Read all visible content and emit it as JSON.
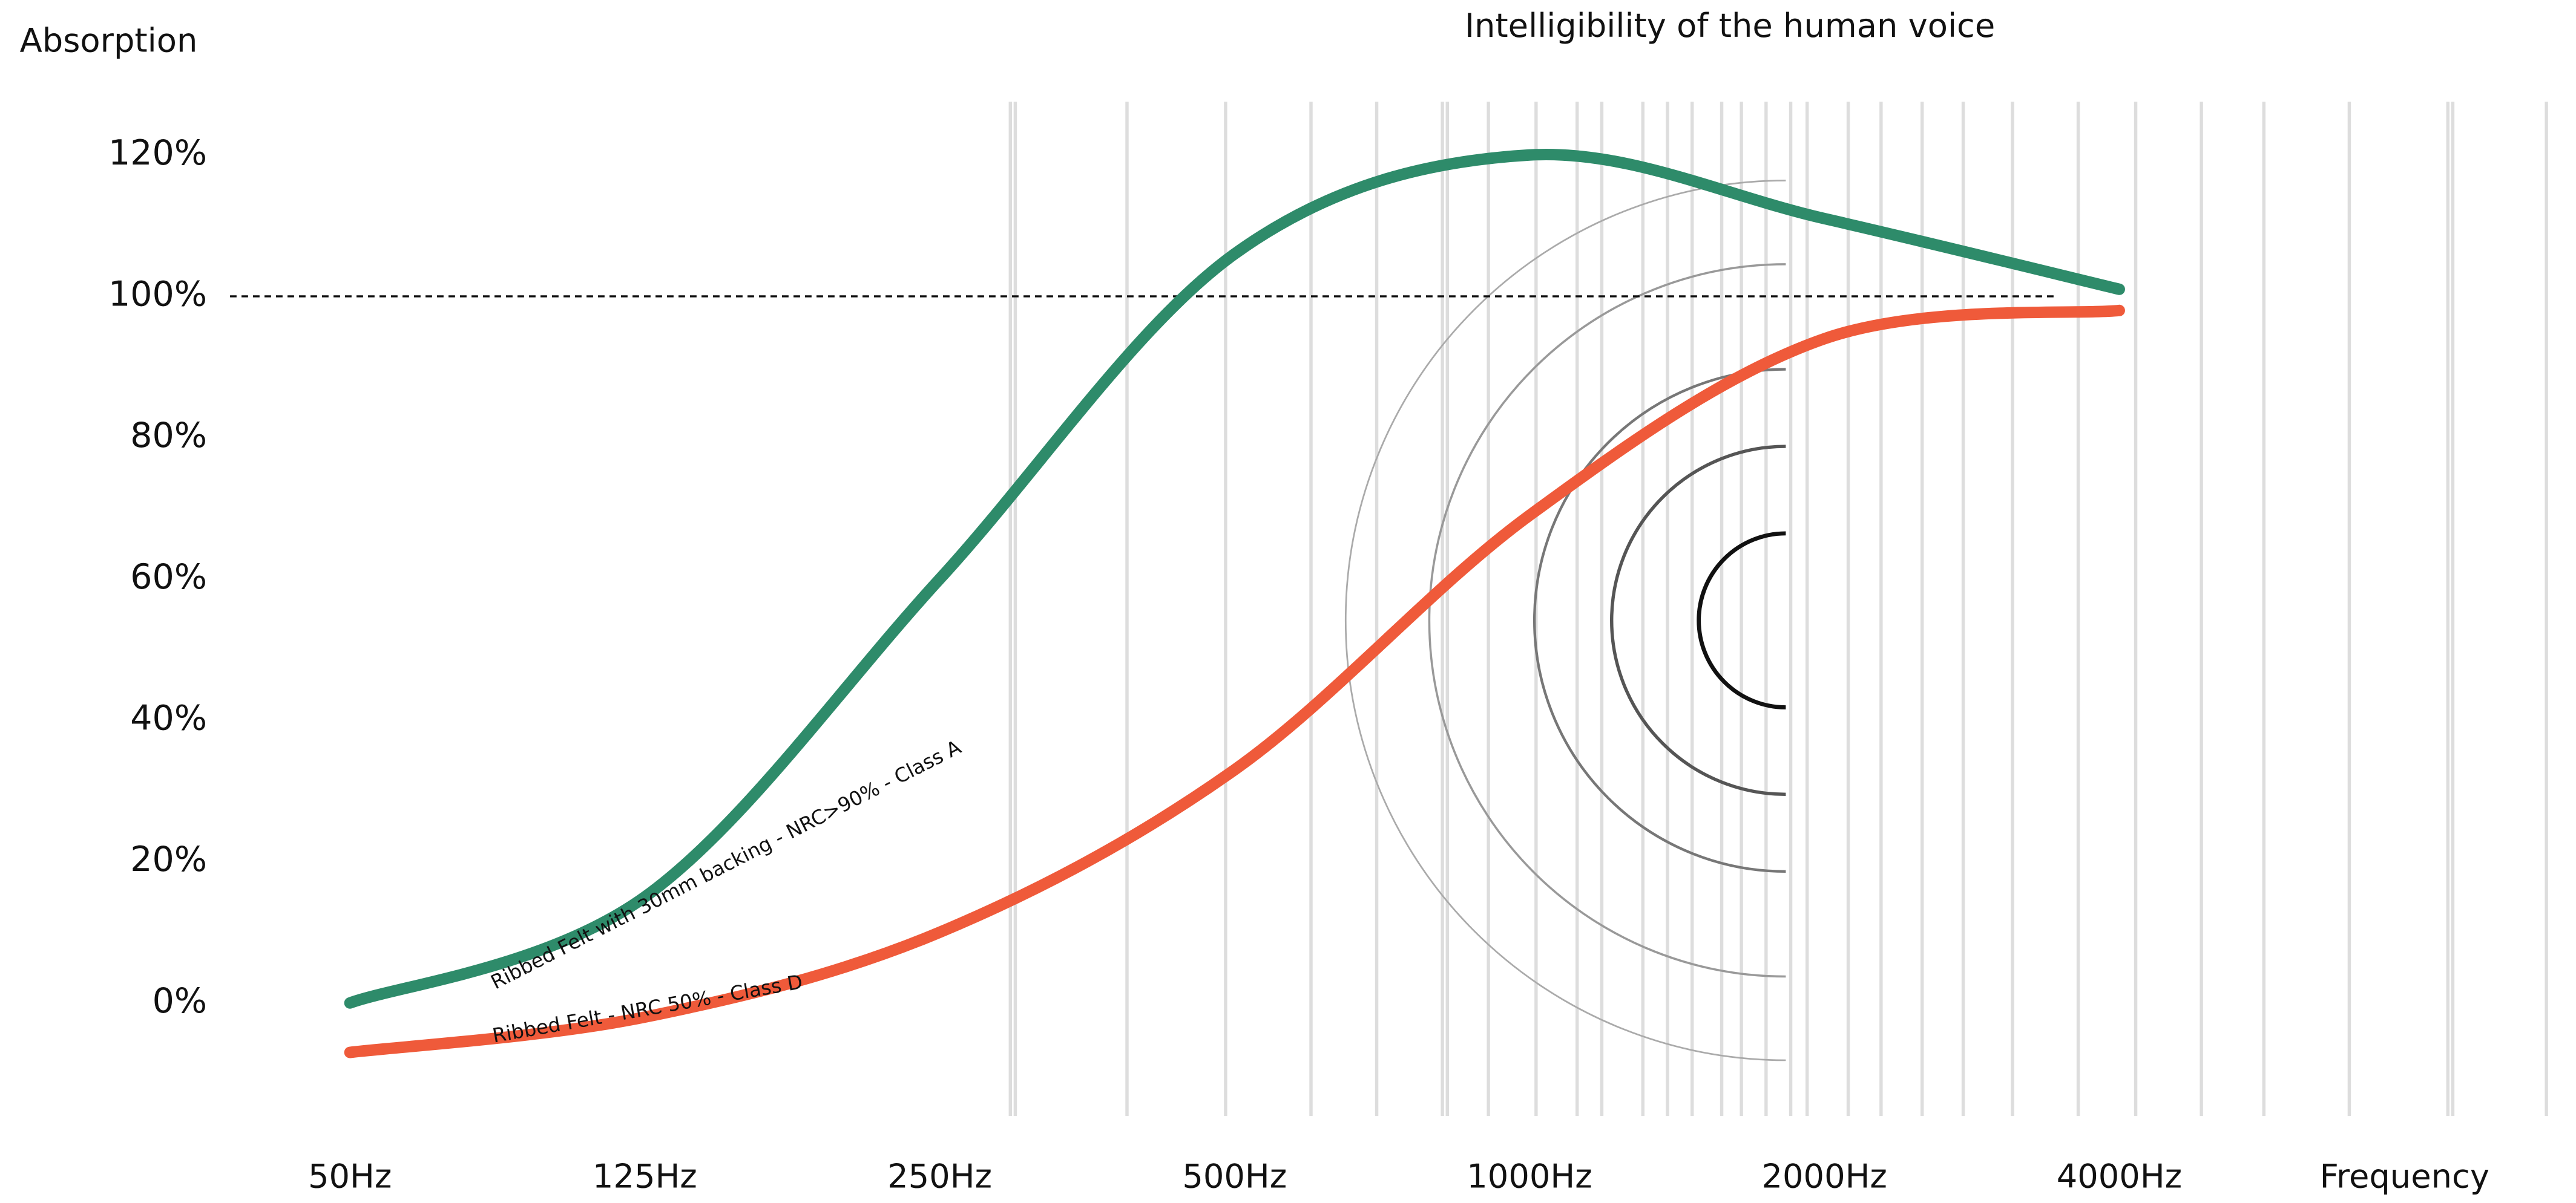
{
  "chart_data": {
    "type": "line",
    "title": "Intelligibility of the human voice",
    "y_label": "Absorption",
    "x_label": "Frequency",
    "categories": [
      "50Hz",
      "125Hz",
      "250Hz",
      "500Hz",
      "1000Hz",
      "2000Hz",
      "4000Hz"
    ],
    "series": [
      {
        "name": "Ribbed Felt with 30mm backing - NRC>90% - Class A",
        "color": "#2e8b6a",
        "values": [
          0,
          15,
          60,
          106,
          120,
          111,
          101
        ]
      },
      {
        "name": "Ribbed Felt - NRC 50% - Class D",
        "color": "#ef5a3a",
        "values": [
          -7,
          -2,
          10,
          33,
          69,
          94,
          98
        ]
      }
    ],
    "ylim": [
      -16,
      128
    ],
    "yticks": [
      {
        "value": 0,
        "label": "0%"
      },
      {
        "value": 20,
        "label": "20%"
      },
      {
        "value": 40,
        "label": "40%"
      },
      {
        "value": 60,
        "label": "60%"
      },
      {
        "value": 80,
        "label": "80%"
      },
      {
        "value": 100,
        "label": "100%"
      },
      {
        "value": 120,
        "label": "120%"
      }
    ],
    "reference_line": 100
  }
}
